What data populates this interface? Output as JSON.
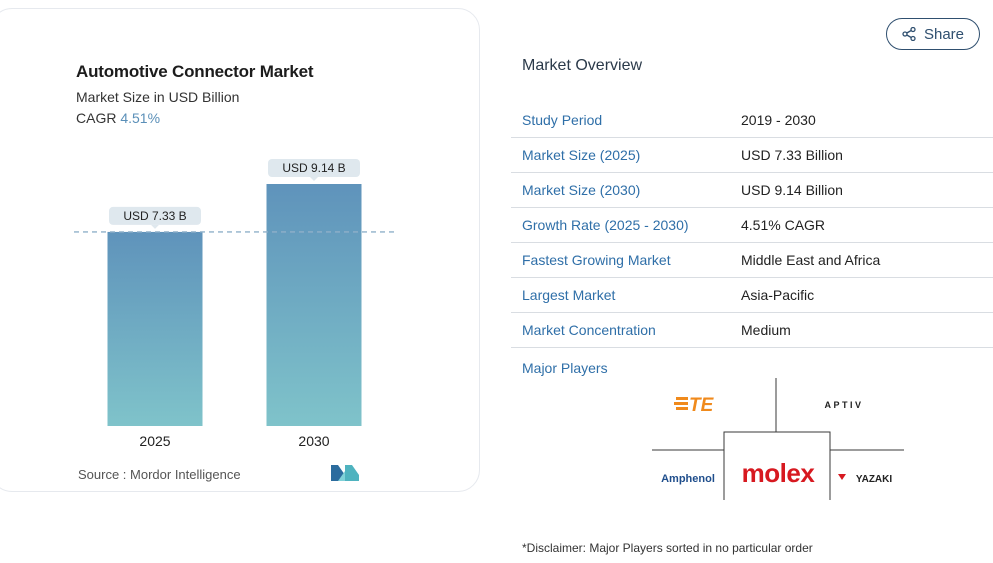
{
  "chart_data": {
    "type": "bar",
    "title": "Automotive Connector Market",
    "subtitle": "Market Size in USD Billion",
    "cagr_label": "CAGR",
    "cagr_value": "4.51%",
    "categories": [
      "2025",
      "2030"
    ],
    "values": [
      7.33,
      9.14
    ],
    "data_labels": [
      "USD 7.33 B",
      "USD 9.14 B"
    ],
    "reference_line_value": 7.33,
    "ylim": [
      0,
      9.14
    ],
    "bar_color_top": "#5f93bb",
    "bar_color_bottom": "#7fc3ca",
    "source": "Source : Mordor Intelligence"
  },
  "share": {
    "label": "Share",
    "icon": "share-icon"
  },
  "overview": {
    "title": "Market Overview",
    "rows": [
      {
        "key": "Study Period",
        "value": "2019 - 2030"
      },
      {
        "key": "Market Size (2025)",
        "value": "USD 7.33 Billion"
      },
      {
        "key": "Market Size (2030)",
        "value": "USD 9.14 Billion"
      },
      {
        "key": "Growth Rate (2025 - 2030)",
        "value": "4.51% CAGR"
      },
      {
        "key": "Fastest Growing Market",
        "value": "Middle East and Africa"
      },
      {
        "key": "Largest Market",
        "value": "Asia-Pacific"
      },
      {
        "key": "Market Concentration",
        "value": "Medium"
      }
    ]
  },
  "major_players": {
    "label": "Major Players",
    "logos": [
      "TE",
      "APTIV",
      "Amphenol",
      "molex",
      "YAZAKI"
    ]
  },
  "disclaimer": "*Disclaimer: Major Players sorted in no particular order",
  "colors": {
    "link": "#2f6fa8",
    "accent": "#5a8fb8",
    "molex_red": "#d71920",
    "te_orange": "#f08a1c"
  }
}
